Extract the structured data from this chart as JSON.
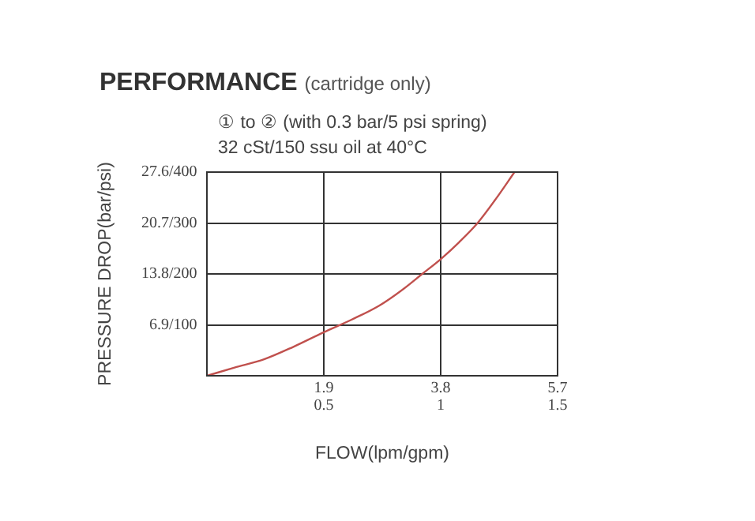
{
  "chart_data": {
    "type": "line",
    "title": "PERFORMANCE",
    "subtitle": "(cartridge only)",
    "annotations": [
      "① to ② (with 0.3 bar/5 psi spring)",
      "32 cSt/150 ssu oil at 40°C"
    ],
    "xlabel": "FLOW(lpm/gpm)",
    "ylabel": "PRESSURE DROP(bar/psi)",
    "x": [
      0,
      0.45,
      0.92,
      1.4,
      1.9,
      2.35,
      2.8,
      3.2,
      3.5,
      3.8,
      4.1,
      4.4,
      4.7,
      5.0
    ],
    "series": [
      {
        "color": "#c0504d",
        "values": [
          0,
          1.1,
          2.2,
          3.9,
          5.9,
          7.6,
          9.5,
          11.8,
          13.8,
          15.8,
          18.1,
          20.7,
          24.0,
          27.6
        ]
      }
    ],
    "xlim": [
      0,
      5.7
    ],
    "ylim": [
      0,
      27.6
    ],
    "xticks": [
      1.9,
      3.8,
      5.7
    ],
    "x2lim": [
      0,
      1.5
    ],
    "x2ticks": [
      0.5,
      1,
      1.5
    ],
    "yticks": [
      6.9,
      13.8,
      20.7,
      27.6
    ],
    "y2lim": [
      0,
      400
    ],
    "y2ticks": [
      {
        "value": 100,
        "label": "/100"
      },
      {
        "value": 200,
        "label": "/200"
      },
      {
        "value": 300,
        "label": "/300"
      },
      {
        "value": 400,
        "label": "/400"
      }
    ],
    "grid": true,
    "marker": "none",
    "line_style": "solid",
    "legend": false
  }
}
